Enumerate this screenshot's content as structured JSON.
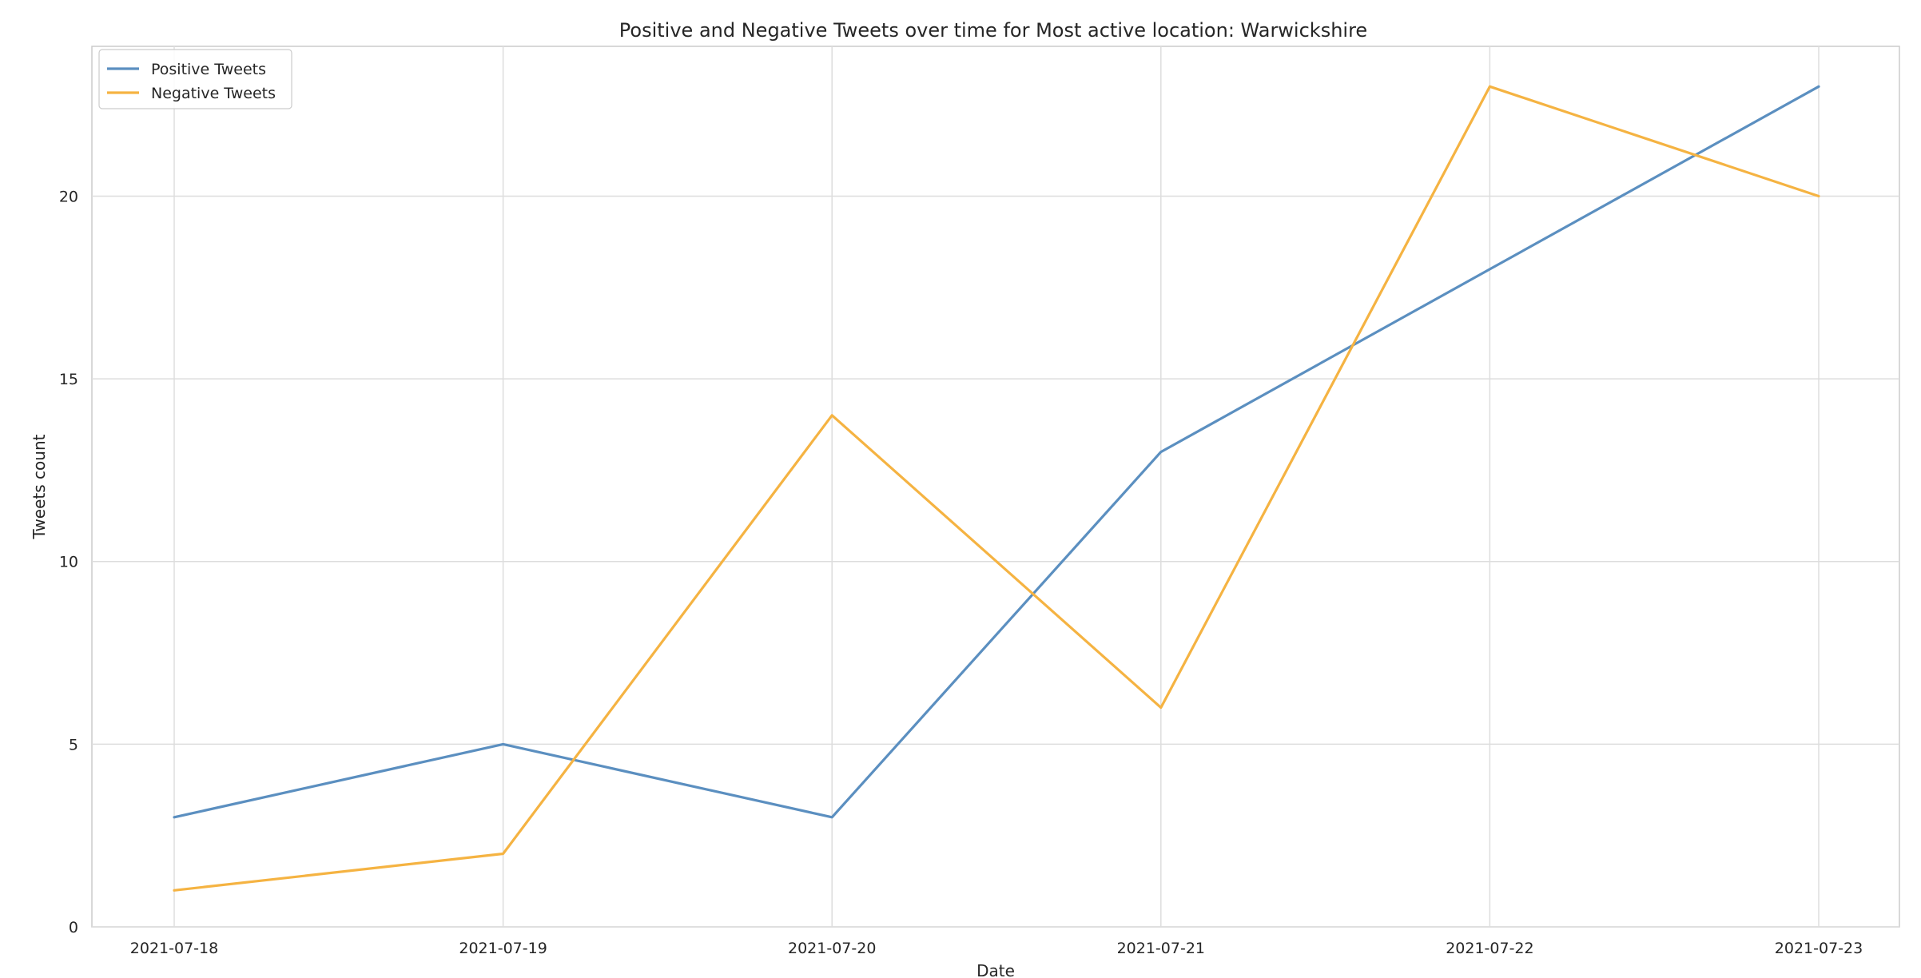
{
  "chart_data": {
    "type": "line",
    "title": "Positive and Negative Tweets over time for Most active location: Warwickshire",
    "xlabel": "Date",
    "ylabel": "Tweets count",
    "x": [
      "2021-07-18",
      "2021-07-19",
      "2021-07-20",
      "2021-07-21",
      "2021-07-22",
      "2021-07-23"
    ],
    "series": [
      {
        "name": "Positive Tweets",
        "values": [
          3,
          5,
          3,
          13,
          18,
          23
        ],
        "color": "#5b8fc0"
      },
      {
        "name": "Negative Tweets",
        "values": [
          1,
          2,
          14,
          6,
          23,
          20
        ],
        "color": "#f5b342"
      }
    ],
    "ylim": [
      0,
      24.1
    ],
    "yticks": [
      0,
      5,
      10,
      15,
      20
    ],
    "grid": true,
    "legend_position": "upper-left"
  }
}
